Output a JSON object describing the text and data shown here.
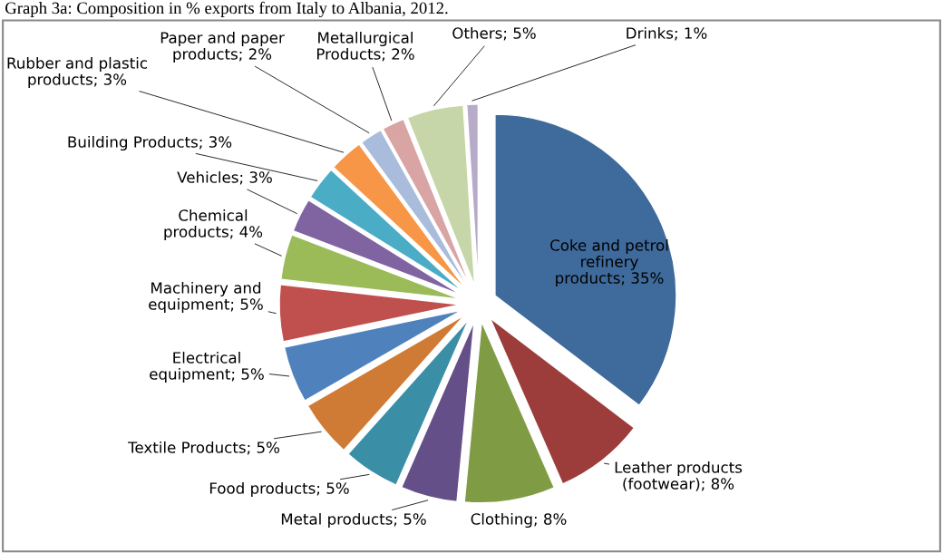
{
  "chart_data": {
    "type": "pie",
    "title": "Graph 3a: Composition in % exports from Italy to Albania, 2012.",
    "categories": [
      "Coke and petrol refinery products",
      "Leather products (footwear)",
      "Clothing",
      "Metal products",
      "Food products",
      "Textile Products",
      "Electrical equipment",
      "Machinery and equipment",
      "Chemical products",
      "Vehicles",
      "Building Products",
      "Rubber and plastic products",
      "Paper and paper products",
      "Metallurgical Products",
      "Others",
      "Drinks"
    ],
    "values": [
      35,
      8,
      8,
      5,
      5,
      5,
      5,
      5,
      4,
      3,
      3,
      3,
      2,
      2,
      5,
      1
    ],
    "value_labels": [
      "35%",
      "8%",
      "8%",
      "5%",
      "5%",
      "5%",
      "5%",
      "5%",
      "4%",
      "3%",
      "3%",
      "3%",
      "2%",
      "2%",
      "5%",
      "1%"
    ],
    "colors": [
      "#3f6a9c",
      "#9c3d3b",
      "#7f9c45",
      "#654f88",
      "#3a8ea6",
      "#d07b35",
      "#4f81bd",
      "#c0504d",
      "#9bbb59",
      "#8064a2",
      "#4bacc6",
      "#f79646",
      "#a9bcdc",
      "#d9a5a4",
      "#c6d6a9",
      "#b7abc9"
    ]
  }
}
